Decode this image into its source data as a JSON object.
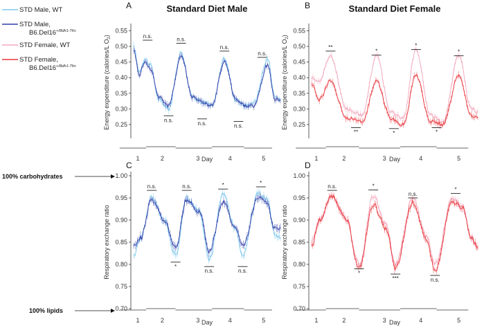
{
  "legend": {
    "entries": [
      {
        "label": "STD Male, WT",
        "color": "#7fc8ec"
      },
      {
        "label": "STD Male,",
        "label2": "B6.Del16",
        "sup": "+/Bdh1-Tfrc",
        "color": "#2f3ea8"
      },
      {
        "label": "STD Female, WT",
        "color": "#f2a6ba"
      },
      {
        "label": "STD Female,",
        "label2": "B6.Del16",
        "sup": "+/Bdh1-Tfrc",
        "color": "#e8333a"
      }
    ]
  },
  "side_labels": {
    "carb": "100% carbohydrates",
    "lipid": "100% lipids"
  },
  "chart_data": [
    {
      "id": "A",
      "type": "line",
      "title": "Standard Diet Male",
      "xlabel": "Day",
      "ylabel": "Energy expenditure (calories/L O",
      "ylabel_sub": "2",
      "ylabel_end": ")",
      "ylim": [
        0.21,
        0.56
      ],
      "yticks": [
        "0.25",
        "0.30",
        "0.35",
        "0.40",
        "0.45",
        "0.50",
        "0.55"
      ],
      "day_labels": [
        "1",
        "2",
        "3",
        "4",
        "5"
      ],
      "series": [
        {
          "name": "STD Male, WT",
          "color": "#7fc8ec",
          "knots": [
            [
              0,
              0.5
            ],
            [
              0.4,
              0.42
            ],
            [
              0.8,
              0.46
            ],
            [
              1.2,
              0.44
            ],
            [
              1.8,
              0.33
            ],
            [
              2.5,
              0.3
            ],
            [
              3.4,
              0.48
            ],
            [
              4.2,
              0.34
            ],
            [
              5,
              0.32
            ],
            [
              5.6,
              0.31
            ],
            [
              6.5,
              0.46
            ],
            [
              7.3,
              0.33
            ],
            [
              8,
              0.31
            ],
            [
              8.6,
              0.32
            ],
            [
              9.6,
              0.46
            ],
            [
              10.1,
              0.34
            ],
            [
              10.5,
              0.33
            ]
          ]
        },
        {
          "name": "STD Male, B6.Del16",
          "color": "#2f3ea8",
          "knots": [
            [
              0,
              0.49
            ],
            [
              0.4,
              0.41
            ],
            [
              0.8,
              0.45
            ],
            [
              1.2,
              0.43
            ],
            [
              1.8,
              0.34
            ],
            [
              2.5,
              0.31
            ],
            [
              3.4,
              0.47
            ],
            [
              4.2,
              0.34
            ],
            [
              5,
              0.32
            ],
            [
              5.6,
              0.31
            ],
            [
              6.5,
              0.45
            ],
            [
              7.3,
              0.33
            ],
            [
              8,
              0.31
            ],
            [
              8.6,
              0.31
            ],
            [
              9.6,
              0.44
            ],
            [
              10.1,
              0.33
            ],
            [
              10.5,
              0.33
            ]
          ]
        }
      ],
      "annotations": [
        {
          "text": "n.s.",
          "x": 1.0,
          "y": 0.52,
          "pos": "above"
        },
        {
          "text": "n.s.",
          "x": 2.5,
          "y": 0.278,
          "pos": "below"
        },
        {
          "text": "n.s.",
          "x": 3.4,
          "y": 0.51,
          "pos": "above"
        },
        {
          "text": "n.s.",
          "x": 4.9,
          "y": 0.268,
          "pos": "below"
        },
        {
          "text": "n.s.",
          "x": 6.5,
          "y": 0.485,
          "pos": "above"
        },
        {
          "text": "n.s.",
          "x": 7.5,
          "y": 0.26,
          "pos": "below"
        },
        {
          "text": "n.s.",
          "x": 9.2,
          "y": 0.465,
          "pos": "above"
        }
      ]
    },
    {
      "id": "B",
      "type": "line",
      "title": "Standard Diet Female",
      "xlabel": "Day",
      "ylabel": "Energy expenditure (calories/L O",
      "ylabel_sub": "2",
      "ylabel_end": ")",
      "ylim": [
        0.21,
        0.56
      ],
      "yticks": [
        "0.25",
        "0.30",
        "0.35",
        "0.40",
        "0.45",
        "0.50",
        "0.55"
      ],
      "day_labels": [
        "1",
        "2",
        "3",
        "4",
        "5"
      ],
      "series": [
        {
          "name": "STD Female, WT",
          "color": "#f2a6ba",
          "knots": [
            [
              0,
              0.4
            ],
            [
              0.5,
              0.39
            ],
            [
              1.2,
              0.47
            ],
            [
              2.2,
              0.3
            ],
            [
              3.2,
              0.28
            ],
            [
              4.1,
              0.47
            ],
            [
              5,
              0.29
            ],
            [
              5.8,
              0.27
            ],
            [
              6.6,
              0.49
            ],
            [
              7.5,
              0.28
            ],
            [
              8.3,
              0.26
            ],
            [
              9.3,
              0.47
            ],
            [
              10.1,
              0.3
            ],
            [
              10.5,
              0.29
            ]
          ]
        },
        {
          "name": "STD Female, B6.Del16",
          "color": "#e8333a",
          "knots": [
            [
              0,
              0.38
            ],
            [
              0.5,
              0.33
            ],
            [
              1.2,
              0.39
            ],
            [
              2.2,
              0.27
            ],
            [
              3.2,
              0.26
            ],
            [
              4.1,
              0.39
            ],
            [
              5,
              0.27
            ],
            [
              5.8,
              0.25
            ],
            [
              6.6,
              0.41
            ],
            [
              7.5,
              0.26
            ],
            [
              8.3,
              0.25
            ],
            [
              9.3,
              0.41
            ],
            [
              10.1,
              0.28
            ],
            [
              10.5,
              0.27
            ]
          ]
        }
      ],
      "annotations": [
        {
          "text": "**",
          "x": 1.2,
          "y": 0.485,
          "pos": "above"
        },
        {
          "text": "**",
          "x": 2.8,
          "y": 0.24,
          "pos": "below"
        },
        {
          "text": "*",
          "x": 4.1,
          "y": 0.472,
          "pos": "above"
        },
        {
          "text": "*",
          "x": 5.2,
          "y": 0.237,
          "pos": "below"
        },
        {
          "text": "*",
          "x": 6.6,
          "y": 0.49,
          "pos": "above"
        },
        {
          "text": "*",
          "x": 7.9,
          "y": 0.24,
          "pos": "below"
        },
        {
          "text": "*",
          "x": 9.3,
          "y": 0.47,
          "pos": "above"
        }
      ]
    },
    {
      "id": "C",
      "type": "line",
      "xlabel": "Day",
      "ylabel": "Respiratory exchange ratio",
      "ylim": [
        0.7,
        1.0
      ],
      "yticks": [
        "0.70",
        "0.75",
        "0.80",
        "0.85",
        "0.90",
        "0.95",
        "1.00"
      ],
      "day_labels": [
        "1",
        "2",
        "3",
        "4",
        "5"
      ],
      "series": [
        {
          "name": "STD Male, WT",
          "color": "#7fc8ec",
          "knots": [
            [
              0,
              0.82
            ],
            [
              0.5,
              0.86
            ],
            [
              1.3,
              0.95
            ],
            [
              2.2,
              0.9
            ],
            [
              3.0,
              0.82
            ],
            [
              3.8,
              0.95
            ],
            [
              4.7,
              0.92
            ],
            [
              5.4,
              0.81
            ],
            [
              6.4,
              0.96
            ],
            [
              7.3,
              0.88
            ],
            [
              7.8,
              0.82
            ],
            [
              8.9,
              0.96
            ],
            [
              9.5,
              0.95
            ],
            [
              10.1,
              0.87
            ],
            [
              10.5,
              0.86
            ]
          ]
        },
        {
          "name": "STD Male, B6.Del16",
          "color": "#2f3ea8",
          "knots": [
            [
              0,
              0.84
            ],
            [
              0.5,
              0.86
            ],
            [
              1.3,
              0.945
            ],
            [
              2.2,
              0.9
            ],
            [
              3.0,
              0.84
            ],
            [
              3.8,
              0.945
            ],
            [
              4.7,
              0.92
            ],
            [
              5.4,
              0.83
            ],
            [
              6.4,
              0.94
            ],
            [
              7.3,
              0.88
            ],
            [
              7.8,
              0.84
            ],
            [
              8.9,
              0.95
            ],
            [
              9.5,
              0.94
            ],
            [
              10.1,
              0.88
            ],
            [
              10.5,
              0.88
            ]
          ]
        }
      ],
      "annotations": [
        {
          "text": "n.s.",
          "x": 1.3,
          "y": 0.967,
          "pos": "above"
        },
        {
          "text": "*",
          "x": 3.0,
          "y": 0.805,
          "pos": "below"
        },
        {
          "text": "n.s.",
          "x": 3.8,
          "y": 0.967,
          "pos": "above"
        },
        {
          "text": "n.s.",
          "x": 5.4,
          "y": 0.795,
          "pos": "below"
        },
        {
          "text": "*",
          "x": 6.4,
          "y": 0.97,
          "pos": "above"
        },
        {
          "text": "n.s.",
          "x": 7.8,
          "y": 0.795,
          "pos": "below"
        },
        {
          "text": "*",
          "x": 9.1,
          "y": 0.975,
          "pos": "above"
        }
      ]
    },
    {
      "id": "D",
      "type": "line",
      "xlabel": "Day",
      "ylabel": "Respiratory exchange ratio",
      "ylim": [
        0.7,
        1.0
      ],
      "yticks": [
        "0.70",
        "0.75",
        "0.80",
        "0.85",
        "0.90",
        "0.95",
        "1.00"
      ],
      "day_labels": [
        "1",
        "2",
        "3",
        "4",
        "5"
      ],
      "series": [
        {
          "name": "STD Female, WT",
          "color": "#f2a6ba",
          "knots": [
            [
              0,
              0.85
            ],
            [
              0.5,
              0.9
            ],
            [
              1.3,
              0.955
            ],
            [
              2.2,
              0.9
            ],
            [
              3.0,
              0.8
            ],
            [
              3.9,
              0.955
            ],
            [
              4.7,
              0.89
            ],
            [
              5.3,
              0.8
            ],
            [
              6.4,
              0.95
            ],
            [
              7.3,
              0.86
            ],
            [
              7.8,
              0.8
            ],
            [
              8.9,
              0.95
            ],
            [
              9.5,
              0.93
            ],
            [
              10.1,
              0.86
            ],
            [
              10.5,
              0.84
            ]
          ]
        },
        {
          "name": "STD Female, B6.Del16",
          "color": "#e8333a",
          "knots": [
            [
              0,
              0.84
            ],
            [
              0.5,
              0.9
            ],
            [
              1.3,
              0.955
            ],
            [
              2.2,
              0.9
            ],
            [
              3.0,
              0.79
            ],
            [
              3.9,
              0.935
            ],
            [
              4.7,
              0.88
            ],
            [
              5.3,
              0.79
            ],
            [
              6.4,
              0.94
            ],
            [
              7.3,
              0.85
            ],
            [
              7.8,
              0.785
            ],
            [
              8.9,
              0.94
            ],
            [
              9.5,
              0.93
            ],
            [
              10.1,
              0.86
            ],
            [
              10.5,
              0.84
            ]
          ]
        }
      ],
      "annotations": [
        {
          "text": "n.s.",
          "x": 1.3,
          "y": 0.967,
          "pos": "above"
        },
        {
          "text": "*",
          "x": 3.0,
          "y": 0.79,
          "pos": "below"
        },
        {
          "text": "*",
          "x": 3.9,
          "y": 0.968,
          "pos": "above"
        },
        {
          "text": "***",
          "x": 5.3,
          "y": 0.778,
          "pos": "below"
        },
        {
          "text": "n.s.",
          "x": 6.4,
          "y": 0.95,
          "pos": "above"
        },
        {
          "text": "n.s.",
          "x": 7.8,
          "y": 0.775,
          "pos": "below"
        },
        {
          "text": "*",
          "x": 9.1,
          "y": 0.96,
          "pos": "above"
        }
      ]
    }
  ]
}
